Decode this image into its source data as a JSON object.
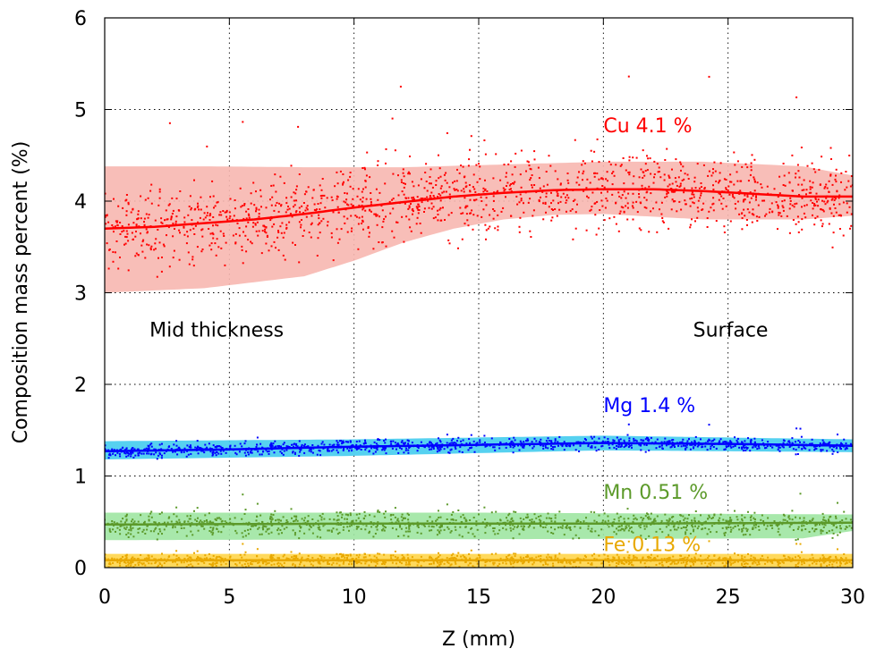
{
  "chart_data": {
    "type": "scatter",
    "xlabel": "Z (mm)",
    "ylabel": "Composition mass percent (%)",
    "xlim": [
      0,
      30
    ],
    "ylim": [
      0,
      6
    ],
    "x_ticks": [
      0,
      5,
      10,
      15,
      20,
      25,
      30
    ],
    "y_ticks": [
      0,
      1,
      2,
      3,
      4,
      5,
      6
    ],
    "grid": true,
    "series": [
      {
        "name": "Cu 4.1 %",
        "color": "#ff0000",
        "band_color": "#f7b7b0",
        "trend": [
          [
            0,
            3.7
          ],
          [
            2,
            3.72
          ],
          [
            4,
            3.76
          ],
          [
            6,
            3.8
          ],
          [
            8,
            3.86
          ],
          [
            10,
            3.93
          ],
          [
            12,
            3.99
          ],
          [
            14,
            4.05
          ],
          [
            16,
            4.09
          ],
          [
            18,
            4.12
          ],
          [
            20,
            4.13
          ],
          [
            22,
            4.13
          ],
          [
            24,
            4.11
          ],
          [
            26,
            4.08
          ],
          [
            28,
            4.05
          ],
          [
            30,
            4.05
          ]
        ],
        "band_upper": [
          [
            0,
            4.38
          ],
          [
            4,
            4.38
          ],
          [
            8,
            4.37
          ],
          [
            12,
            4.37
          ],
          [
            16,
            4.4
          ],
          [
            20,
            4.43
          ],
          [
            24,
            4.43
          ],
          [
            28,
            4.38
          ],
          [
            30,
            4.28
          ]
        ],
        "band_lower": [
          [
            0,
            3.0
          ],
          [
            4,
            3.05
          ],
          [
            8,
            3.18
          ],
          [
            10,
            3.35
          ],
          [
            12,
            3.55
          ],
          [
            14,
            3.7
          ],
          [
            16,
            3.8
          ],
          [
            18,
            3.85
          ],
          [
            20,
            3.86
          ],
          [
            22,
            3.83
          ],
          [
            24,
            3.8
          ],
          [
            26,
            3.8
          ],
          [
            28,
            3.8
          ],
          [
            30,
            3.84
          ]
        ],
        "spread": 0.3
      },
      {
        "name": "Mg 1.4 %",
        "color": "#0000ff",
        "band_color": "#44ccee",
        "trend": [
          [
            0,
            1.27
          ],
          [
            5,
            1.29
          ],
          [
            10,
            1.32
          ],
          [
            15,
            1.34
          ],
          [
            20,
            1.36
          ],
          [
            25,
            1.35
          ],
          [
            30,
            1.33
          ]
        ],
        "band_upper": [
          [
            0,
            1.38
          ],
          [
            10,
            1.4
          ],
          [
            20,
            1.44
          ],
          [
            30,
            1.4
          ]
        ],
        "band_lower": [
          [
            0,
            1.18
          ],
          [
            10,
            1.22
          ],
          [
            20,
            1.28
          ],
          [
            30,
            1.26
          ]
        ],
        "spread": 0.05
      },
      {
        "name": "Mn 0.51 %",
        "color": "#5c9a2a",
        "band_color": "#9fe5a2",
        "trend": [
          [
            0,
            0.47
          ],
          [
            10,
            0.48
          ],
          [
            20,
            0.48
          ],
          [
            30,
            0.49
          ]
        ],
        "band_upper": [
          [
            0,
            0.6
          ],
          [
            15,
            0.6
          ],
          [
            30,
            0.58
          ]
        ],
        "band_lower": [
          [
            0,
            0.3
          ],
          [
            15,
            0.31
          ],
          [
            28,
            0.32
          ],
          [
            30,
            0.4
          ]
        ],
        "spread": 0.09
      },
      {
        "name": "Fe 0.13 %",
        "color": "#e8a800",
        "band_color": "#ffd54a",
        "trend": [
          [
            0,
            0.08
          ],
          [
            30,
            0.08
          ]
        ],
        "band_upper": [
          [
            0,
            0.15
          ],
          [
            30,
            0.15
          ]
        ],
        "band_lower": [
          [
            0,
            0.0
          ],
          [
            30,
            0.0
          ]
        ],
        "spread": 0.05
      }
    ],
    "annotations": [
      {
        "text": "Cu 4.1 %",
        "x": 20,
        "y": 4.75,
        "color": "#ff0000"
      },
      {
        "text": "Mg 1.4 %",
        "x": 20,
        "y": 1.7,
        "color": "#0000ff"
      },
      {
        "text": "Mn 0.51 %",
        "x": 20,
        "y": 0.75,
        "color": "#5c9a2a"
      },
      {
        "text": "Fe 0.13 %",
        "x": 20,
        "y": 0.18,
        "color": "#e8a800"
      },
      {
        "text": "Mid thickness",
        "x": 1.8,
        "y": 2.52,
        "color": "#000000"
      },
      {
        "text": "Surface",
        "x": 23.6,
        "y": 2.52,
        "color": "#000000"
      }
    ]
  }
}
